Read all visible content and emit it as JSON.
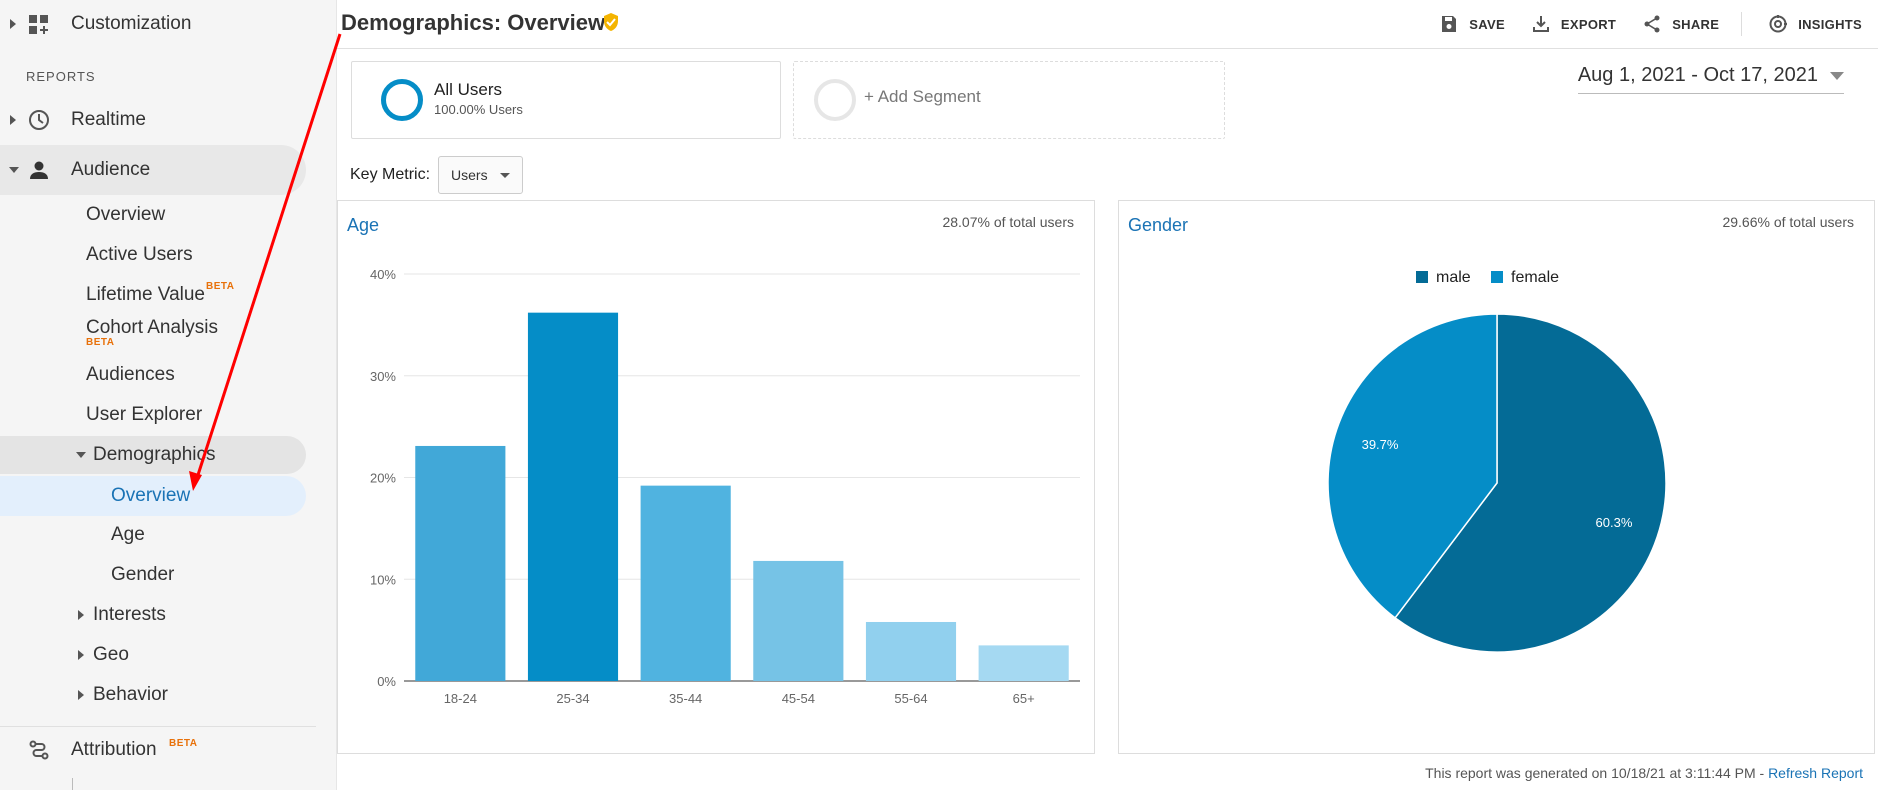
{
  "sidebar": {
    "customization_label": "Customization",
    "reports_header": "REPORTS",
    "realtime_label": "Realtime",
    "audience_label": "Audience",
    "audience_items": [
      "Overview",
      "Active Users",
      "Lifetime Value",
      "Cohort Analysis",
      "Audiences",
      "User Explorer"
    ],
    "beta_label": "BETA",
    "demographics_label": "Demographics",
    "demographics_items": [
      "Overview",
      "Age",
      "Gender"
    ],
    "audience_more": [
      "Interests",
      "Geo",
      "Behavior"
    ],
    "attribution_label": "Attribution"
  },
  "header": {
    "title": "Demographics: Overview",
    "toolbar": {
      "save": "SAVE",
      "export": "EXPORT",
      "share": "SHARE",
      "insights": "INSIGHTS"
    }
  },
  "segments": {
    "all_users": {
      "name": "All Users",
      "sub": "100.00% Users"
    },
    "add_segment": "+ Add Segment"
  },
  "date_range": "Aug 1, 2021 - Oct 17, 2021",
  "key_metric": {
    "label": "Key Metric:",
    "value": "Users"
  },
  "age_panel": {
    "title": "Age",
    "pct_of_total": "28.07% of total users"
  },
  "gender_panel": {
    "title": "Gender",
    "pct_of_total": "29.66% of total users"
  },
  "footer": {
    "note": "This report was generated on 10/18/21 at 3:11:44 PM - ",
    "refresh_link": "Refresh Report"
  },
  "colors": {
    "accent": "#1a73b5",
    "male": "#046b96",
    "female": "#058dc7",
    "beta": "#e8710a",
    "annotation": "#ff0000"
  },
  "chart_data": [
    {
      "type": "bar",
      "title": "Age",
      "categories": [
        "18-24",
        "25-34",
        "35-44",
        "45-54",
        "55-64",
        "65+"
      ],
      "values": [
        23.1,
        36.2,
        19.2,
        11.8,
        5.8,
        3.5
      ],
      "bar_colors": [
        "#41a8d8",
        "#058dc7",
        "#50b3e0",
        "#76c3e6",
        "#91d0ee",
        "#a5d9f2"
      ],
      "yticks": [
        "0%",
        "10%",
        "20%",
        "30%",
        "40%"
      ],
      "ylim": [
        0,
        40
      ],
      "grid": true
    },
    {
      "type": "pie",
      "title": "Gender",
      "labels": [
        "male",
        "female"
      ],
      "values": [
        60.3,
        39.7
      ],
      "value_labels": [
        "60.3%",
        "39.7%"
      ],
      "legend": "top"
    }
  ]
}
